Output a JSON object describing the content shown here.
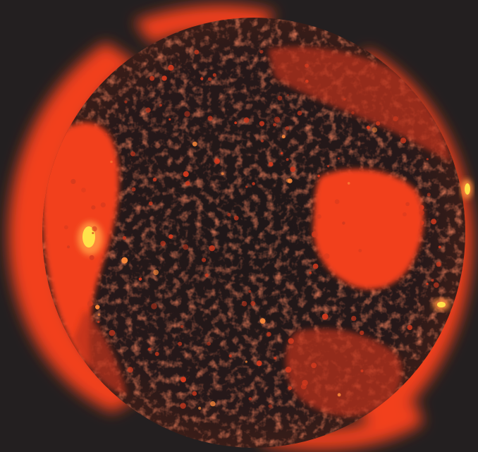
{
  "image": {
    "subject": "solar-corona-xray",
    "colors": {
      "background": "#231f20",
      "disk": "#231a1a",
      "corona": "#f2401c",
      "corona_dim": "#b8321a",
      "hot": "#ff8a3a",
      "brightest": "#ffe24a",
      "speckle": "#d63a1e"
    }
  }
}
